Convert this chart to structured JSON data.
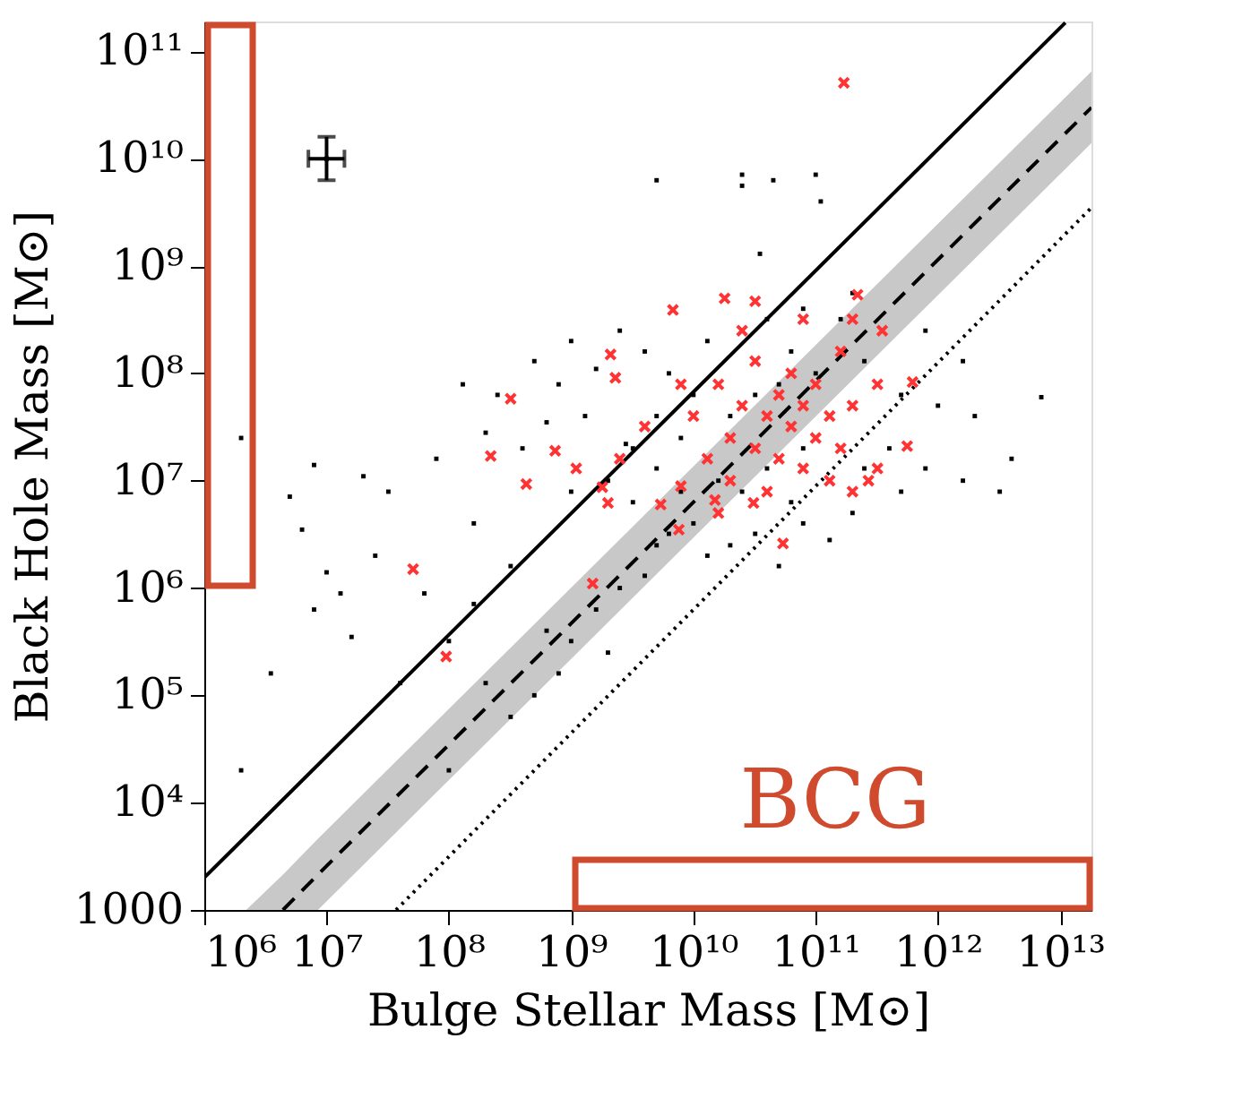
{
  "chart_data": {
    "type": "scatter",
    "xlabel": "Bulge Stellar Mass [M⊙]",
    "ylabel": "Black Hole Mass [M⊙]",
    "log": "xy",
    "grid": false,
    "xlim": [
      1000000.0,
      18000000000000.0
    ],
    "ylim": [
      1000,
      190000000000.0
    ],
    "xticks": [
      {
        "value": 1000000.0,
        "label": "10⁶"
      },
      {
        "value": 10000000.0,
        "label": "10⁷"
      },
      {
        "value": 100000000.0,
        "label": "10⁸"
      },
      {
        "value": 1000000000.0,
        "label": "10⁹"
      },
      {
        "value": 10000000000.0,
        "label": "10¹⁰"
      },
      {
        "value": 100000000000.0,
        "label": "10¹¹"
      },
      {
        "value": 1000000000000.0,
        "label": "10¹²"
      },
      {
        "value": 10000000000000.0,
        "label": "10¹³"
      }
    ],
    "yticks": [
      1000,
      {
        "value": 10000.0,
        "label": "10⁴"
      },
      {
        "value": 100000.0,
        "label": "10⁵"
      },
      {
        "value": 1000000.0,
        "label": "10⁶"
      },
      {
        "value": 10000000.0,
        "label": "10⁷"
      },
      {
        "value": 100000000.0,
        "label": "10⁸"
      },
      {
        "value": 1000000000.0,
        "label": "10⁹"
      },
      {
        "value": 10000000000.0,
        "label": "10¹⁰"
      },
      {
        "value": 100000000000.0,
        "label": "10¹¹"
      }
    ],
    "annotations": [
      "BCG"
    ],
    "series": [
      {
        "type": "line",
        "color": "#000000",
        "line_style": "dashed",
        "x": [
          2200000.0,
          4400000.0,
          8500000.0,
          18000000000000.0
        ],
        "values": [
          null,
          1000,
          2140,
          30000000000.0
        ],
        "lower": [
          1000,
          1000,
          1000,
          14000000000.0
        ],
        "upper": [
          1000,
          2140,
          4600,
          65000000000.0
        ]
      },
      {
        "type": "line",
        "color": "#000000",
        "line_style": "solid",
        "x": [
          1000000.0,
          11000000000000.0
        ],
        "values": [
          2000,
          185000000000.0
        ]
      },
      {
        "type": "line",
        "color": "#000000",
        "line_style": "dotted",
        "x": [
          37000000.0,
          18000000000000.0
        ],
        "values": [
          1000,
          3500000000.0
        ]
      },
      {
        "marker": "square",
        "color": "#000000",
        "x": [
          25000000000.0,
          25000000000.0,
          45000000000.0,
          100000000000.0,
          110000000000.0,
          5000000000.0,
          35000000000.0,
          200000000000.0,
          79000000000.0,
          160000000000.0,
          2000000.0,
          20000000.0,
          79000000.0,
          7900000.0,
          32000000.0,
          6300000.0,
          5000000.0,
          400000000.0,
          630000000.0,
          1300000000.0,
          200000000.0,
          2800000000.0,
          1000000000.0,
          160000000.0,
          25000000.0,
          13000000.0,
          7900000.0,
          16000000.0,
          10000000.0,
          63000000.0,
          100000000.0,
          320000000.0,
          160000000.0,
          40000000.0,
          3500000.0,
          2000000.0,
          100000000.0,
          320000000.0,
          790000000.0,
          1000000000.0,
          1600000000.0,
          2500000000.0,
          4000000000.0,
          5000000000.0,
          500000000.0,
          630000000.0,
          2000000000.0,
          6300000000.0,
          10000000000.0,
          13000000000.0,
          20000000000.0,
          32000000000.0,
          50000000000.0,
          79000000000.0,
          130000000000.0,
          200000000000.0,
          200000000.0,
          2000000000.0,
          3200000000.0,
          3200000000.0,
          5000000000.0,
          5000000000.0,
          6300000000.0,
          7900000000.0,
          7900000000.0,
          10000000000.0,
          13000000000.0,
          16000000000.0,
          20000000000.0,
          25000000000.0,
          32000000000.0,
          40000000000.0,
          40000000000.0,
          50000000000.0,
          63000000000.0,
          63000000000.0,
          79000000000.0,
          100000000000.0,
          250000000000.0,
          250000000000.0,
          400000000000.0,
          500000000000.0,
          500000000000.0,
          790000000000.0,
          1000000000000.0,
          1600000000000.0,
          2000000000000.0,
          1600000000000.0,
          790000000000.0,
          4000000000000.0,
          3200000000000.0,
          4000000000.0,
          2500000000.0,
          1600000000.0,
          790000000.0,
          500000000.0,
          1000000000.0,
          250000000.0,
          130000000.0,
          7000000000000.0
        ],
        "values": [
          7100000000.0,
          5600000000.0,
          6300000000.0,
          7100000000.0,
          4000000000.0,
          6300000000.0,
          1300000000.0,
          560000000.0,
          400000000.0,
          320000000.0,
          25000000.0,
          11000000.0,
          16000000.0,
          14000000.0,
          7900000.0,
          3500000.0,
          7100000.0,
          20000000.0,
          35000000.0,
          40000000.0,
          28000000.0,
          22000000.0,
          7900000.0,
          4000000.0,
          2000000.0,
          890000.0,
          630000.0,
          350000.0,
          1400000.0,
          890000.0,
          320000.0,
          1600000.0,
          710000.0,
          130000.0,
          160000.0,
          20000.0,
          20000.0,
          63000.0,
          160000.0,
          320000.0,
          630000.0,
          1000000.0,
          1300000.0,
          2500000.0,
          100000.0,
          400000.0,
          250000.0,
          3200000.0,
          4000000.0,
          2000000.0,
          2500000.0,
          3200000.0,
          1600000.0,
          4000000.0,
          2800000.0,
          5000000.0,
          130000.0,
          10000000.0,
          20000000.0,
          6300000.0,
          40000000.0,
          13000000.0,
          100000000.0,
          25000000.0,
          7900000.0,
          63000000.0,
          200000000.0,
          10000000.0,
          40000000.0,
          7900000.0,
          63000000.0,
          320000000.0,
          13000000.0,
          79000000.0,
          160000000.0,
          6300000.0,
          20000000.0,
          100000000.0,
          13000000.0,
          130000000.0,
          20000000.0,
          63000000.0,
          7900000.0,
          13000000.0,
          50000000.0,
          10000000.0,
          40000000.0,
          130000000.0,
          250000000.0,
          16000000.0,
          7900000.0,
          160000000.0,
          250000000.0,
          110000000.0,
          79000000.0,
          130000000.0,
          200000000.0,
          63000000.0,
          79000000.0,
          60000000.0
        ]
      },
      {
        "marker": "cross",
        "color": "#ff3333",
        "x": [
          170000000000.0,
          220000000.0,
          740000000.0,
          320000000.0,
          2100000000.0,
          2300000000.0,
          6800000000.0,
          18000000000.0,
          32000000000.0,
          220000000000.0,
          620000000000.0,
          560000000000.0,
          350000000000.0,
          430000000.0,
          1100000000.0,
          1800000000.0,
          2000000000.0,
          51000000.0,
          95000000.0,
          1500000000.0,
          5400000000.0,
          7600000000.0,
          54000000000.0,
          270000000000.0,
          7900000000.0,
          15000000000.0,
          31000000000.0,
          10000000000.0,
          13000000000.0,
          16000000000.0,
          20000000000.0,
          20000000000.0,
          25000000000.0,
          32000000000.0,
          32000000000.0,
          40000000000.0,
          40000000000.0,
          50000000000.0,
          50000000000.0,
          63000000000.0,
          63000000000.0,
          79000000000.0,
          79000000000.0,
          100000000000.0,
          100000000000.0,
          130000000000.0,
          130000000000.0,
          160000000000.0,
          160000000000.0,
          200000000000.0,
          320000000000.0,
          320000000000.0,
          7900000000.0,
          4000000000.0,
          2500000000.0,
          25000000000.0,
          79000000000.0,
          200000000000.0,
          16000000000.0,
          200000000000.0
        ],
        "values": [
          51000000000.0,
          17000000.0,
          19000000.0,
          58000000.0,
          150000000.0,
          91000000.0,
          390000000.0,
          500000000.0,
          470000000.0,
          540000000.0,
          83000000.0,
          21000000.0,
          250000000.0,
          9300000.0,
          13000000.0,
          8700000.0,
          6200000.0,
          1500000.0,
          230000.0,
          1100000.0,
          6000000.0,
          3500000.0,
          2600000.0,
          10000000.0,
          8900000.0,
          6600000.0,
          6200000.0,
          40000000.0,
          16000000.0,
          79000000.0,
          25000000.0,
          10000000.0,
          50000000.0,
          130000000.0,
          20000000.0,
          40000000.0,
          7900000.0,
          63000000.0,
          16000000.0,
          32000000.0,
          100000000.0,
          13000000.0,
          50000000.0,
          25000000.0,
          79000000.0,
          10000000.0,
          40000000.0,
          20000000.0,
          160000000.0,
          50000000.0,
          79000000.0,
          13000000.0,
          79000000.0,
          32000000.0,
          16000000.0,
          250000000.0,
          320000000.0,
          320000000.0,
          5000000.0,
          7900000.0
        ]
      },
      {
        "marker": "circle",
        "color": "#000000",
        "x": [
          10000000.0
        ],
        "values": [
          10000000000.0
        ],
        "errors": [
          [
            6300000000.0,
            16000000000.0
          ]
        ],
        "xerrors": [
          [
            7100000.0,
            14000000.0
          ]
        ]
      }
    ]
  }
}
